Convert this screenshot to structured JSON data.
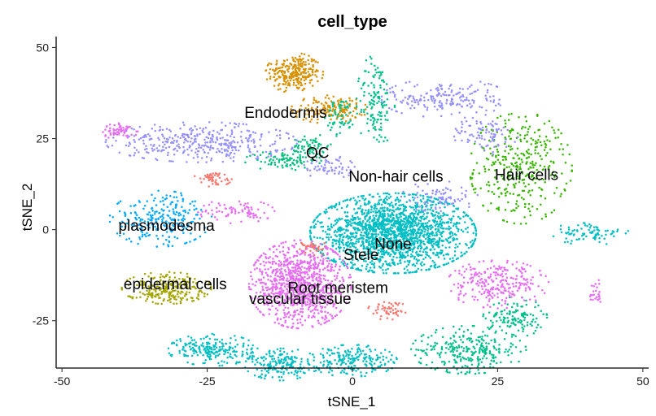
{
  "chart_data": {
    "type": "scatter",
    "title": "cell_type",
    "xlabel": "tSNE_1",
    "ylabel": "tSNE_2",
    "xlim": [
      -51,
      51
    ],
    "ylim": [
      -38,
      53
    ],
    "x_ticks": [
      -50,
      -25,
      0,
      25,
      50
    ],
    "x_tick_labels": [
      "-50",
      "-25",
      "0",
      "25",
      "50"
    ],
    "y_ticks": [
      -25,
      0,
      25,
      50
    ],
    "y_tick_labels": [
      "-25",
      "0",
      "25",
      "50"
    ],
    "grid": false,
    "legend": "none",
    "series": [
      {
        "name": "Endodermis",
        "color": "#D89000",
        "blobs": [
          {
            "cx": -10,
            "cy": 43,
            "rx": 4.5,
            "ry": 5,
            "n": 260
          },
          {
            "cx": -4,
            "cy": 33,
            "rx": 6,
            "ry": 3.5,
            "n": 160
          }
        ]
      },
      {
        "name": "Hair cells",
        "color": "#39B600",
        "blobs": [
          {
            "cx": 29,
            "cy": 17,
            "rx": 8,
            "ry": 14,
            "n": 360
          }
        ]
      },
      {
        "name": "QC",
        "color": "#00BF7D",
        "blobs": [
          {
            "cx": -12,
            "cy": 19,
            "rx": 6,
            "ry": 2.5,
            "n": 90
          },
          {
            "cx": -7,
            "cy": 23,
            "rx": 3,
            "ry": 3,
            "n": 60
          }
        ]
      },
      {
        "name": "Non-hair cells",
        "color": "#00C08B",
        "blobs": [
          {
            "cx": 4,
            "cy": 35,
            "rx": 3,
            "ry": 12,
            "n": 140
          },
          {
            "cx": -2,
            "cy": 31,
            "rx": 2.5,
            "ry": 5,
            "n": 60
          },
          {
            "cx": 20,
            "cy": -33,
            "rx": 9,
            "ry": 6,
            "n": 280
          },
          {
            "cx": 28,
            "cy": -24,
            "rx": 5,
            "ry": 5,
            "n": 130
          }
        ]
      },
      {
        "name": "None",
        "color": "#00BFC4",
        "blobs": [
          {
            "cx": 7,
            "cy": -1,
            "rx": 13,
            "ry": 10,
            "n": 1900
          },
          {
            "cx": -24,
            "cy": -33,
            "rx": 7,
            "ry": 4,
            "n": 220
          },
          {
            "cx": -12,
            "cy": -37,
            "rx": 6,
            "ry": 4,
            "n": 180
          },
          {
            "cx": 0,
            "cy": -36,
            "rx": 7,
            "ry": 4,
            "n": 200
          },
          {
            "cx": 41,
            "cy": -1,
            "rx": 6,
            "ry": 3,
            "n": 80
          }
        ]
      },
      {
        "name": "plasmodesma",
        "color": "#00A9FF",
        "blobs": [
          {
            "cx": -33,
            "cy": 3,
            "rx": 8,
            "ry": 7,
            "n": 240
          }
        ]
      },
      {
        "name": "Stele",
        "color": "#9590FF",
        "blobs": [
          {
            "cx": -26,
            "cy": 24,
            "rx": 15,
            "ry": 5,
            "n": 380
          },
          {
            "cx": 16,
            "cy": 36,
            "rx": 10,
            "ry": 5,
            "n": 190
          },
          {
            "cx": 23,
            "cy": 26,
            "rx": 5,
            "ry": 5,
            "n": 90
          },
          {
            "cx": 15,
            "cy": 9,
            "rx": 6,
            "ry": 4,
            "n": 80
          },
          {
            "cx": -4,
            "cy": 17,
            "rx": 4,
            "ry": 3,
            "n": 60
          }
        ]
      },
      {
        "name": "epidermal cells",
        "color": "#A3A500",
        "blobs": [
          {
            "cx": -32,
            "cy": -16,
            "rx": 7,
            "ry": 4,
            "n": 250
          }
        ]
      },
      {
        "name": "Root meristem",
        "color": "#F8766D",
        "blobs": [
          {
            "cx": -24,
            "cy": 14,
            "rx": 3,
            "ry": 2,
            "n": 50
          },
          {
            "cx": -7,
            "cy": -5,
            "rx": 2.5,
            "ry": 2,
            "n": 40
          },
          {
            "cx": 6,
            "cy": -22,
            "rx": 3,
            "ry": 2.5,
            "n": 50
          }
        ]
      },
      {
        "name": "vascular tissue",
        "color": "#E76BF3",
        "blobs": [
          {
            "cx": -9,
            "cy": -15,
            "rx": 8,
            "ry": 11,
            "n": 950
          },
          {
            "cx": 25,
            "cy": -15,
            "rx": 8,
            "ry": 6,
            "n": 260
          },
          {
            "cx": -40,
            "cy": 27,
            "rx": 3,
            "ry": 2,
            "n": 60
          },
          {
            "cx": -20,
            "cy": 5,
            "rx": 6,
            "ry": 3,
            "n": 80
          },
          {
            "cx": 42,
            "cy": -17,
            "rx": 1.2,
            "ry": 3,
            "n": 25
          }
        ]
      }
    ],
    "labels": [
      {
        "text": "Endodermis",
        "x": -11.5,
        "y": 32
      },
      {
        "text": "QC",
        "x": -6,
        "y": 21
      },
      {
        "text": "Non-hair cells",
        "x": 7.5,
        "y": 14.5
      },
      {
        "text": "Hair cells",
        "x": 30,
        "y": 15
      },
      {
        "text": "plasmodesma",
        "x": -32,
        "y": 1
      },
      {
        "text": "None",
        "x": 7,
        "y": -4
      },
      {
        "text": "Stele",
        "x": 1.5,
        "y": -7
      },
      {
        "text": "epidermal cells",
        "x": -30.5,
        "y": -15
      },
      {
        "text": "Root meristem",
        "x": -2.5,
        "y": -16
      },
      {
        "text": "vascular tissue",
        "x": -9,
        "y": -19
      }
    ]
  }
}
